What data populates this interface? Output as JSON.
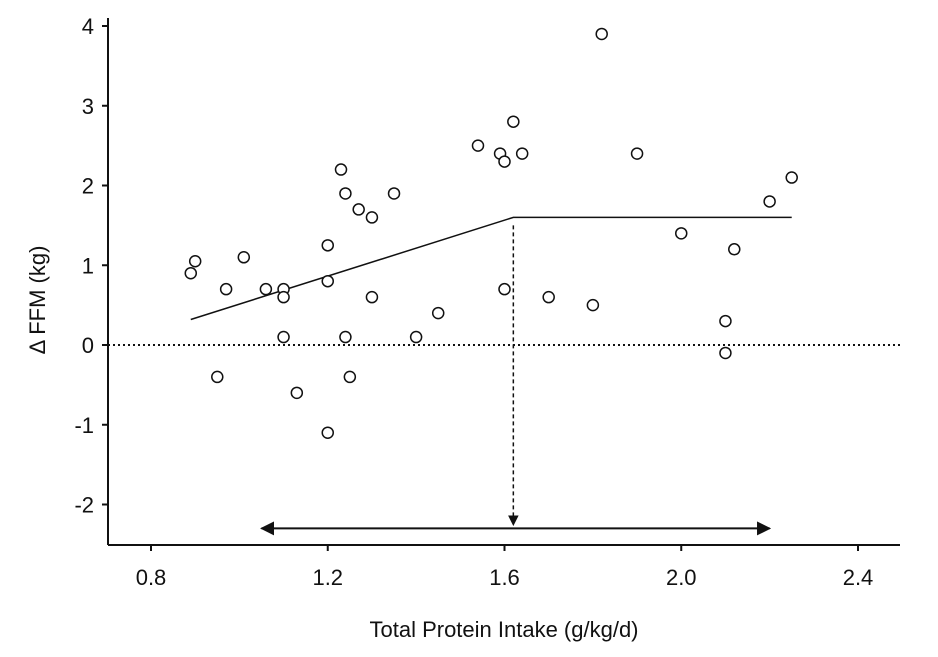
{
  "chart_data": {
    "type": "scatter",
    "title": "",
    "xlabel": "Total Protein Intake (g/kg/d)",
    "ylabel": "Δ FFM (kg)",
    "xlim": [
      0.7,
      2.5
    ],
    "ylim": [
      -2.5,
      4.2
    ],
    "x_ticks": [
      0.8,
      1.2,
      1.6,
      2.0,
      2.4
    ],
    "x_tick_labels": [
      "0.8",
      "1.2",
      "1.6",
      "2.0",
      "2.4"
    ],
    "y_ticks": [
      -2,
      -1,
      0,
      1,
      2,
      3,
      4
    ],
    "y_tick_labels": [
      "-2",
      "-1",
      "0",
      "1",
      "2",
      "3",
      "4"
    ],
    "grid": false,
    "points": [
      {
        "x": 0.89,
        "y": 0.9
      },
      {
        "x": 0.9,
        "y": 1.05
      },
      {
        "x": 0.95,
        "y": -0.4
      },
      {
        "x": 0.97,
        "y": 0.7
      },
      {
        "x": 1.01,
        "y": 1.1
      },
      {
        "x": 1.06,
        "y": 0.7
      },
      {
        "x": 1.1,
        "y": 0.7
      },
      {
        "x": 1.1,
        "y": 0.6
      },
      {
        "x": 1.1,
        "y": 0.1
      },
      {
        "x": 1.13,
        "y": -0.6
      },
      {
        "x": 1.2,
        "y": 1.25
      },
      {
        "x": 1.2,
        "y": 0.8
      },
      {
        "x": 1.2,
        "y": -1.1
      },
      {
        "x": 1.23,
        "y": 2.2
      },
      {
        "x": 1.24,
        "y": 1.9
      },
      {
        "x": 1.24,
        "y": 0.1
      },
      {
        "x": 1.25,
        "y": -0.4
      },
      {
        "x": 1.27,
        "y": 1.7
      },
      {
        "x": 1.3,
        "y": 1.6
      },
      {
        "x": 1.3,
        "y": 0.6
      },
      {
        "x": 1.35,
        "y": 1.9
      },
      {
        "x": 1.4,
        "y": 0.1
      },
      {
        "x": 1.45,
        "y": 0.4
      },
      {
        "x": 1.54,
        "y": 2.5
      },
      {
        "x": 1.59,
        "y": 2.4
      },
      {
        "x": 1.6,
        "y": 2.3
      },
      {
        "x": 1.6,
        "y": 0.7
      },
      {
        "x": 1.62,
        "y": 2.8
      },
      {
        "x": 1.64,
        "y": 2.4
      },
      {
        "x": 1.7,
        "y": 0.6
      },
      {
        "x": 1.8,
        "y": 0.5
      },
      {
        "x": 1.82,
        "y": 3.9
      },
      {
        "x": 1.9,
        "y": 2.4
      },
      {
        "x": 2.0,
        "y": 1.4
      },
      {
        "x": 2.1,
        "y": 0.3
      },
      {
        "x": 2.1,
        "y": -0.1
      },
      {
        "x": 2.12,
        "y": 1.2
      },
      {
        "x": 2.2,
        "y": 1.8
      },
      {
        "x": 2.25,
        "y": 2.1
      }
    ],
    "fit_line": [
      {
        "x": 0.89,
        "y": 0.32
      },
      {
        "x": 1.62,
        "y": 1.6
      },
      {
        "x": 2.25,
        "y": 1.6
      }
    ],
    "breakpoint": {
      "x": 1.62,
      "y": 1.6
    },
    "zero_reference_y": 0,
    "range_arrow": {
      "x_start": 1.05,
      "x_end": 2.2,
      "y": -2.3
    }
  }
}
